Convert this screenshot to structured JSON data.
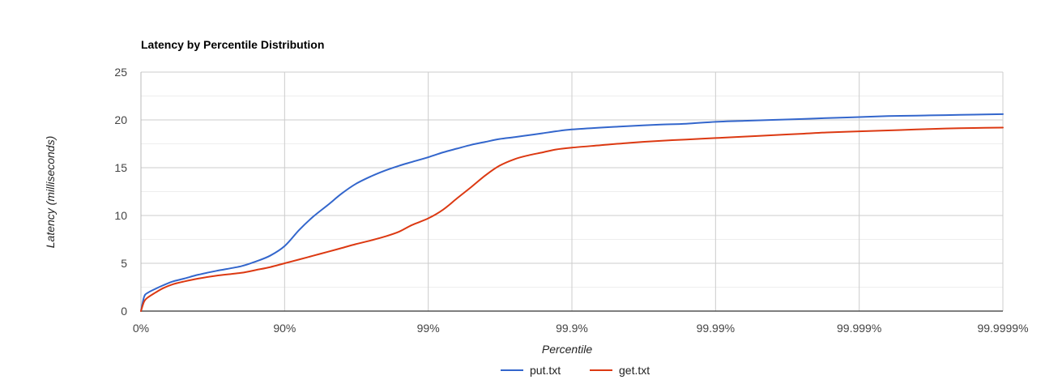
{
  "chart_data": {
    "type": "line",
    "title": "Latency by Percentile Distribution",
    "xlabel": "Percentile",
    "ylabel": "Latency (milliseconds)",
    "ylim": [
      0,
      25
    ],
    "y_ticks": [
      "0",
      "5",
      "10",
      "15",
      "20",
      "25"
    ],
    "x_ticks": [
      "0%",
      "90%",
      "99%",
      "99.9%",
      "99.99%",
      "99.999%",
      "99.9999%"
    ],
    "x_scale": "log-inverse-percentile",
    "grid": true,
    "legend_position": "bottom",
    "series": [
      {
        "name": "put.txt",
        "color": "#3366cc",
        "x": [
          0,
          5,
          10,
          20,
          30,
          40,
          50,
          60,
          70,
          80,
          84.2,
          87.4,
          90,
          92.1,
          93.7,
          95,
          96.0,
          96.8,
          97.5,
          98.0,
          98.4,
          98.7,
          99.0,
          99.21,
          99.37,
          99.5,
          99.6,
          99.68,
          99.75,
          99.8,
          99.84,
          99.87,
          99.9,
          99.937,
          99.96,
          99.975,
          99.984,
          99.99,
          99.9937,
          99.996,
          99.9975,
          99.9984,
          99.999,
          99.99937,
          99.9996,
          99.99975,
          99.99984,
          99.9999
        ],
        "y": [
          0,
          1.5,
          1.9,
          2.3,
          2.7,
          3.1,
          3.4,
          3.8,
          4.2,
          4.7,
          5.2,
          5.8,
          6.8,
          8.5,
          9.9,
          11.1,
          12.3,
          13.3,
          14.1,
          14.7,
          15.2,
          15.6,
          16.1,
          16.6,
          17.0,
          17.4,
          17.7,
          18.0,
          18.2,
          18.4,
          18.6,
          18.8,
          19.0,
          19.2,
          19.35,
          19.5,
          19.6,
          19.8,
          19.9,
          20.0,
          20.1,
          20.2,
          20.3,
          20.4,
          20.45,
          20.5,
          20.55,
          20.6
        ]
      },
      {
        "name": "get.txt",
        "color": "#dc3912",
        "x": [
          0,
          5,
          10,
          20,
          30,
          40,
          50,
          60,
          70,
          80,
          84.2,
          87.4,
          90,
          92.1,
          93.7,
          95,
          96.0,
          96.8,
          97.5,
          98.0,
          98.4,
          98.7,
          99.0,
          99.21,
          99.37,
          99.5,
          99.6,
          99.68,
          99.75,
          99.8,
          99.84,
          99.87,
          99.9,
          99.937,
          99.96,
          99.975,
          99.984,
          99.99,
          99.9937,
          99.996,
          99.9975,
          99.9984,
          99.999,
          99.99937,
          99.9996,
          99.99975,
          99.99984,
          99.9999
        ],
        "y": [
          0,
          1.0,
          1.4,
          1.9,
          2.4,
          2.8,
          3.1,
          3.4,
          3.7,
          4.0,
          4.3,
          4.6,
          5.0,
          5.4,
          5.8,
          6.2,
          6.6,
          7.0,
          7.4,
          7.8,
          8.3,
          9.0,
          9.7,
          10.6,
          11.8,
          13.0,
          14.2,
          15.2,
          15.9,
          16.3,
          16.6,
          16.9,
          17.1,
          17.35,
          17.6,
          17.8,
          17.95,
          18.1,
          18.25,
          18.4,
          18.55,
          18.7,
          18.8,
          18.9,
          19.0,
          19.1,
          19.15,
          19.2
        ]
      }
    ]
  }
}
